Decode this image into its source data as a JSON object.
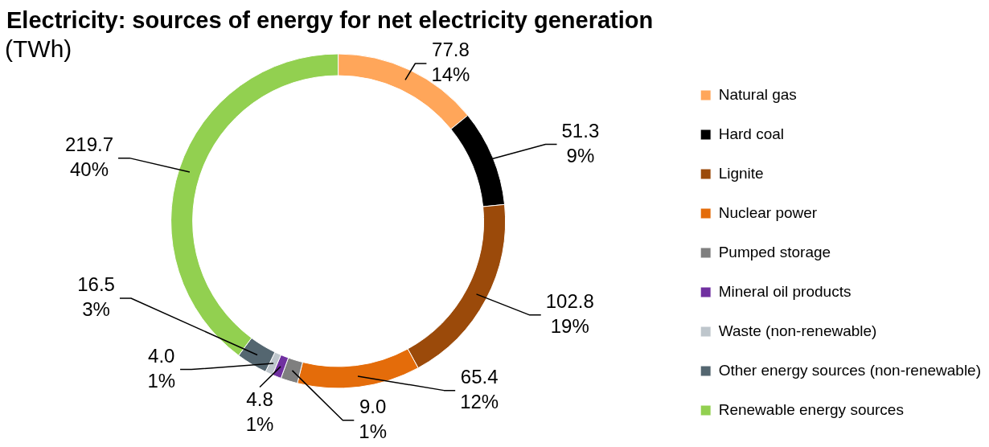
{
  "chart_data": {
    "type": "donut",
    "title": "Electricity: sources of energy for net electricity generation",
    "subtitle": "(TWh)",
    "categories": [
      "Natural gas",
      "Hard coal",
      "Lignite",
      "Nuclear power",
      "Pumped storage",
      "Mineral oil products",
      "Waste (non-renewable)",
      "Other energy sources (non-renewable)",
      "Renewable energy sources"
    ],
    "values": [
      77.8,
      51.3,
      102.8,
      65.4,
      9.0,
      4.8,
      4.0,
      16.5,
      219.7
    ],
    "colors": [
      "#ffa65a",
      "#000000",
      "#9b4a0a",
      "#e46c0a",
      "#7f7f7f",
      "#7030a0",
      "#bec6cc",
      "#546670",
      "#92d050"
    ],
    "value_labels": [
      "77.8\n14%",
      "51.3\n9%",
      "102.8\n19%",
      "65.4\n12%",
      "9.0\n1%",
      "4.8\n1%",
      "4.0\n1%",
      "16.5\n3%",
      "219.7\n40%"
    ],
    "legend": "right"
  }
}
